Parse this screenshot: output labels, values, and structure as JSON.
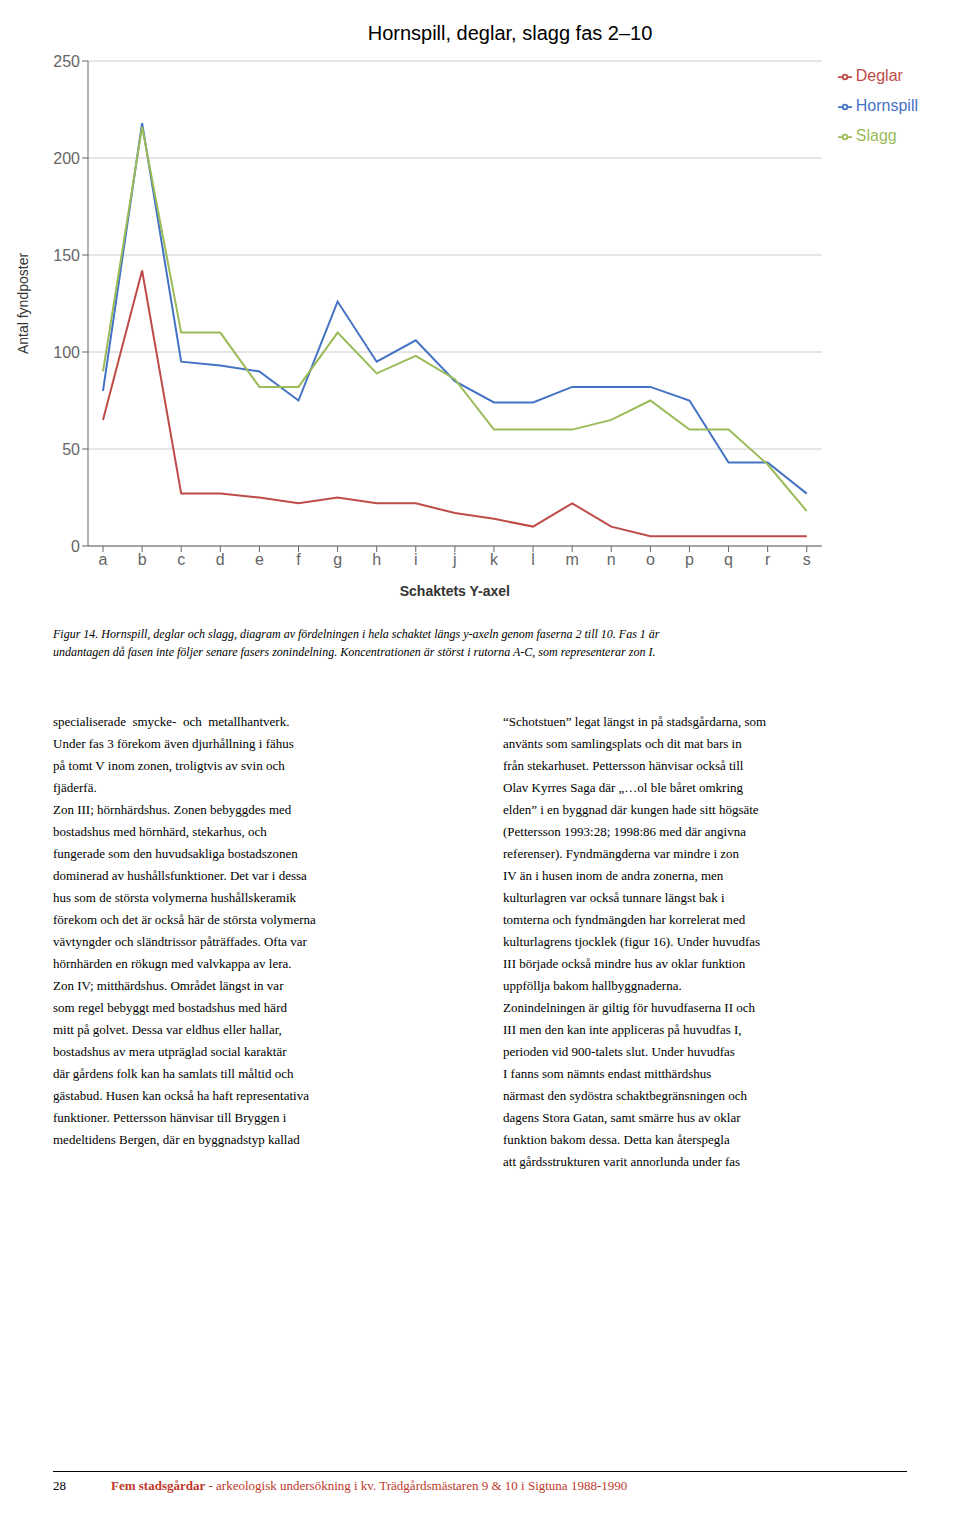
{
  "chart_data": {
    "type": "line",
    "title": "Hornspill, deglar, slagg fas 2–10",
    "xlabel": "Schaktets Y-axel",
    "ylabel": "Antal fyndposter",
    "categories": [
      "a",
      "b",
      "c",
      "d",
      "e",
      "f",
      "g",
      "h",
      "i",
      "j",
      "k",
      "l",
      "m",
      "n",
      "o",
      "p",
      "q",
      "r",
      "s"
    ],
    "series": [
      {
        "name": "Hornspill",
        "color": "#4472C4",
        "values": [
          80,
          218,
          95,
          93,
          90,
          75,
          126,
          95,
          106,
          85,
          74,
          74,
          82,
          82,
          82,
          75,
          43,
          43,
          27
        ]
      },
      {
        "name": "Deglar",
        "color": "#BE4B48",
        "values": [
          65,
          142,
          27,
          27,
          25,
          22,
          25,
          22,
          22,
          17,
          14,
          10,
          22,
          10,
          5,
          5,
          5,
          5,
          5
        ]
      },
      {
        "name": "Slagg",
        "color": "#9BBB59",
        "values": [
          90,
          216,
          110,
          110,
          82,
          82,
          110,
          89,
          98,
          86,
          60,
          60,
          60,
          65,
          75,
          60,
          60,
          42,
          18
        ]
      }
    ],
    "ylim": [
      0,
      250
    ],
    "yticks": [
      0,
      50,
      100,
      150,
      200,
      250
    ],
    "grid": true,
    "legend": "upper right",
    "annotations": [
      [
        "Figur 14. Hornspill, deglar och slagg, diagram av fördelningen i hela schaktet längs y-axeln genom faserna 2 till 10. Fas 1 är",
        "undantagen då fasen inte följer senare fasers zonindelning. Koncentrationen är störst i rutorna A-C, som representerar zon I."
      ],
      [
        "specialiserade  smycke-  och  metallhantverk.",
        "Under fas 3 förekom även djurhållning i fähus",
        "på tomt V inom zonen, troligtvis av svin och",
        "fjäderfä.",
        "Zon III; hörnhärdshus. Zonen bebyggdes med",
        "bostadshus med hörnhärd, stekarhus, och",
        "fungerade som den huvudsakliga bostadszonen",
        "dominerad av hushållsfunktioner. Det var i dessa",
        "hus som de största volymerna hushållskeramik",
        "förekom och det är också här de största volymerna",
        "vävtyngder och sländtrissor påträffades. Ofta var",
        "hörnhärden en rökugn med valvkappa av lera.",
        "Zon IV; mitthärdshus. Området längst in var",
        "som regel bebyggt med bostadshus med härd",
        "mitt på golvet. Dessa var eldhus eller hallar,",
        "bostadshus av mera utpräglad social karaktär",
        "där gårdens folk kan ha samlats till måltid och",
        "gästabud. Husen kan också ha haft representativa",
        "funktioner. Pettersson hänvisar till Bryggen i",
        "medeltidens Bergen, där en byggnadstyp kallad"
      ],
      [
        "“Schotstuen” legat längst in på stadsgårdarna, som",
        "använts som samlingsplats och dit mat bars in",
        "från stekarhuset. Pettersson hänvisar också till",
        "Olav Kyrres Saga där „…ol ble båret omkring",
        "elden” i en byggnad där kungen hade sitt högsäte",
        "(Pettersson 1993:28; 1998:86 med där angivna",
        "referenser). Fyndmängderna var mindre i zon",
        "IV än i husen inom de andra zonerna, men",
        "kulturlagren var också tunnare längst bak i",
        "tomterna och fyndmängden har korrelerat med",
        "kulturlagrens tjocklek (figur 16). Under huvudfas",
        "III började också mindre hus av oklar funktion",
        "uppföllja bakom hallbyggnaderna.",
        "Zonindelningen är giltig för huvudfaserna II och",
        "III men den kan inte appliceras på huvudfas I,",
        "perioden vid 900-talets slut. Under huvudfas",
        "I fanns som nämnts endast mitthärdshus",
        "närmast den sydöstra schaktbegränsningen och",
        "dagens Stora Gatan, samt smärre hus av oklar",
        "funktion bakom dessa. Detta kan återspegla",
        "att gårdsstrukturen varit annorlunda under fas"
      ],
      [
        "28",
        "Fem stadsgårdar",
        " - arkeologisk undersökning i kv. Trädgårdsmästaren 9 & 10 i Sigtuna 1988-1990"
      ]
    ]
  }
}
